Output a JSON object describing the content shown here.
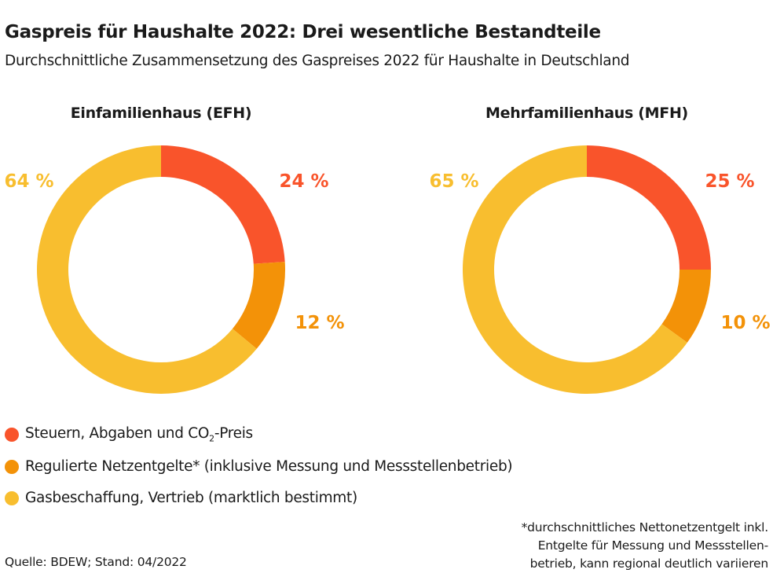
{
  "title": "Gaspreis für Haushalte 2022: Drei wesentliche Bestandteile",
  "subtitle": "Durchschnittliche Zusammensetzung des Gaspreises 2022 für Haushalte in Deutschland",
  "chart_data": [
    {
      "type": "pie",
      "title": "Einfamilienhaus (EFH)",
      "categories": [
        "Steuern, Abgaben und CO₂-Preis",
        "Regulierte Netzentgelte*",
        "Gasbeschaffung, Vertrieb"
      ],
      "values": [
        24,
        12,
        64
      ],
      "labels": [
        "24 %",
        "12 %",
        "64 %"
      ]
    },
    {
      "type": "pie",
      "title": "Mehrfamilienhaus (MFH)",
      "categories": [
        "Steuern, Abgaben und CO₂-Preis",
        "Regulierte Netzentgelte*",
        "Gasbeschaffung, Vertrieb"
      ],
      "values": [
        25,
        10,
        65
      ],
      "labels": [
        "25 %",
        "10 %",
        "65 %"
      ]
    }
  ],
  "colors": [
    "#F9542B",
    "#F39208",
    "#F8BE2F"
  ],
  "legend": [
    {
      "pre": "Steuern, Abgaben und CO",
      "sub": "2",
      "post": "-Preis"
    },
    {
      "pre": "Regulierte Netzentgelte* (inklusive Messung und Messstellenbetrieb)",
      "sub": "",
      "post": ""
    },
    {
      "pre": "Gasbeschaffung, Vertrieb (marktlich bestimmt)",
      "sub": "",
      "post": ""
    }
  ],
  "footnote": [
    "*durchschnittliches Nettonetzentgelt inkl.",
    "Entgelte für Messung und Messstellen-",
    "betrieb, kann regional deutlich variieren"
  ],
  "source": "Quelle: BDEW; Stand: 04/2022"
}
